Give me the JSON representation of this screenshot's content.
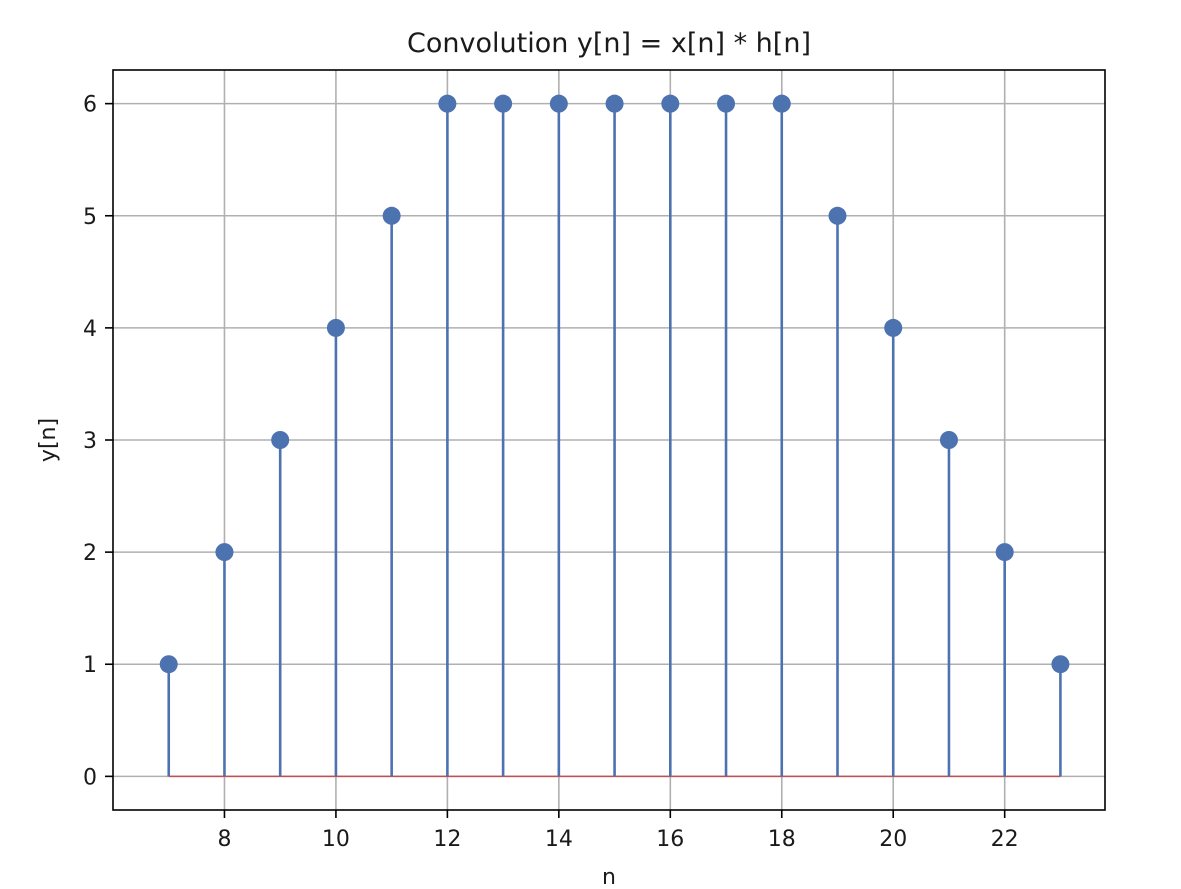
{
  "chart_data": {
    "type": "stem",
    "title": "Convolution y[n] = x[n] * h[n]",
    "xlabel": "n",
    "ylabel": "y[n]",
    "x": [
      7,
      8,
      9,
      10,
      11,
      12,
      13,
      14,
      15,
      16,
      17,
      18,
      19,
      20,
      21,
      22,
      23
    ],
    "values": [
      1,
      2,
      3,
      4,
      5,
      6,
      6,
      6,
      6,
      6,
      6,
      6,
      5,
      4,
      3,
      2,
      1
    ],
    "xlim": [
      6.0,
      23.8
    ],
    "ylim": [
      -0.3,
      6.3
    ],
    "xticks": [
      8,
      10,
      12,
      14,
      16,
      18,
      20,
      22
    ],
    "yticks": [
      0,
      1,
      2,
      3,
      4,
      5,
      6
    ],
    "grid": true,
    "baseline": 0,
    "color": "#4c72b0"
  }
}
